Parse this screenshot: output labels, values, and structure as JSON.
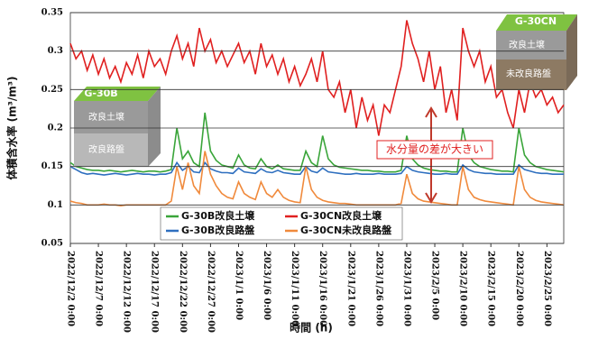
{
  "chart_data": {
    "type": "line",
    "y_label": "体積含水率 (m³/m³)",
    "x_label": "時間 (h)",
    "annotation": "水分量の差が大きい",
    "insets": [
      {
        "title": "G-30B",
        "layers": [
          "改良土壌",
          "改良路盤"
        ]
      },
      {
        "title": "G-30CN",
        "layers": [
          "改良土壌",
          "未改良路盤"
        ]
      }
    ],
    "grid": true,
    "legend": "lower left",
    "ylim": [
      0.05,
      0.35
    ],
    "yticks": [
      0.05,
      0.1,
      0.15,
      0.2,
      0.25,
      0.3,
      0.35
    ],
    "xlim": [
      "2022/12/2",
      "2023/2/28"
    ],
    "xticks": [
      {
        "value": "2022/12/2",
        "label": "2022/12/2 0:00"
      },
      {
        "value": "2022/12/7",
        "label": "2022/12/7 0:00"
      },
      {
        "value": "2022/12/12",
        "label": "2022/12/12 0:00"
      },
      {
        "value": "2022/12/17",
        "label": "2022/12/17 0:00"
      },
      {
        "value": "2022/12/22",
        "label": "2022/12/22 0:00"
      },
      {
        "value": "2022/12/27",
        "label": "2022/12/27 0:00"
      },
      {
        "value": "2023/1/1",
        "label": "2023/1/1 0:00"
      },
      {
        "value": "2023/1/6",
        "label": "2023/1/6 0:00"
      },
      {
        "value": "2023/1/11",
        "label": "2023/1/11 0:00"
      },
      {
        "value": "2023/1/16",
        "label": "2023/1/16 0:00"
      },
      {
        "value": "2023/1/21",
        "label": "2023/1/21 0:00"
      },
      {
        "value": "2023/1/26",
        "label": "2023/1/26 0:00"
      },
      {
        "value": "2023/1/31",
        "label": "2023/1/31 0:00"
      },
      {
        "value": "2023/2/5",
        "label": "2023/2/5 0:00"
      },
      {
        "value": "2023/2/10",
        "label": "2023/2/10 0:00"
      },
      {
        "value": "2023/2/15",
        "label": "2023/2/15 0:00"
      },
      {
        "value": "2023/2/20",
        "label": "2023/2/20 0:00"
      },
      {
        "value": "2023/2/25",
        "label": "2023/2/25 0:00"
      }
    ],
    "x": [
      "2022/12/2",
      "2022/12/3",
      "2022/12/4",
      "2022/12/5",
      "2022/12/6",
      "2022/12/7",
      "2022/12/8",
      "2022/12/9",
      "2022/12/10",
      "2022/12/11",
      "2022/12/12",
      "2022/12/13",
      "2022/12/14",
      "2022/12/15",
      "2022/12/16",
      "2022/12/17",
      "2022/12/18",
      "2022/12/19",
      "2022/12/20",
      "2022/12/21",
      "2022/12/22",
      "2022/12/23",
      "2022/12/24",
      "2022/12/25",
      "2022/12/26",
      "2022/12/27",
      "2022/12/28",
      "2022/12/29",
      "2022/12/30",
      "2022/12/31",
      "2023/1/1",
      "2023/1/2",
      "2023/1/3",
      "2023/1/4",
      "2023/1/5",
      "2023/1/6",
      "2023/1/7",
      "2023/1/8",
      "2023/1/9",
      "2023/1/10",
      "2023/1/11",
      "2023/1/12",
      "2023/1/13",
      "2023/1/14",
      "2023/1/15",
      "2023/1/16",
      "2023/1/17",
      "2023/1/18",
      "2023/1/19",
      "2023/1/20",
      "2023/1/21",
      "2023/1/22",
      "2023/1/23",
      "2023/1/24",
      "2023/1/25",
      "2023/1/26",
      "2023/1/27",
      "2023/1/28",
      "2023/1/29",
      "2023/1/30",
      "2023/1/31",
      "2023/2/1",
      "2023/2/2",
      "2023/2/3",
      "2023/2/4",
      "2023/2/5",
      "2023/2/6",
      "2023/2/7",
      "2023/2/8",
      "2023/2/9",
      "2023/2/10",
      "2023/2/11",
      "2023/2/12",
      "2023/2/13",
      "2023/2/14",
      "2023/2/15",
      "2023/2/16",
      "2023/2/17",
      "2023/2/18",
      "2023/2/19",
      "2023/2/20",
      "2023/2/21",
      "2023/2/22",
      "2023/2/23",
      "2023/2/24",
      "2023/2/25",
      "2023/2/26",
      "2023/2/27",
      "2023/2/28"
    ],
    "series": [
      {
        "name": "G-30B改良土壌",
        "color": "#3aa53a",
        "values": [
          0.155,
          0.15,
          0.148,
          0.146,
          0.145,
          0.145,
          0.144,
          0.145,
          0.144,
          0.143,
          0.144,
          0.145,
          0.144,
          0.143,
          0.144,
          0.144,
          0.143,
          0.144,
          0.146,
          0.2,
          0.16,
          0.17,
          0.155,
          0.15,
          0.22,
          0.17,
          0.158,
          0.152,
          0.15,
          0.148,
          0.165,
          0.152,
          0.148,
          0.147,
          0.16,
          0.15,
          0.147,
          0.152,
          0.147,
          0.146,
          0.145,
          0.145,
          0.17,
          0.155,
          0.15,
          0.19,
          0.16,
          0.152,
          0.149,
          0.148,
          0.147,
          0.146,
          0.145,
          0.145,
          0.144,
          0.144,
          0.143,
          0.143,
          0.143,
          0.145,
          0.19,
          0.16,
          0.152,
          0.148,
          0.146,
          0.145,
          0.144,
          0.144,
          0.143,
          0.143,
          0.2,
          0.165,
          0.155,
          0.15,
          0.148,
          0.146,
          0.145,
          0.144,
          0.144,
          0.143,
          0.2,
          0.165,
          0.155,
          0.15,
          0.148,
          0.146,
          0.145,
          0.144,
          0.143
        ]
      },
      {
        "name": "G-30CN改良土壌",
        "color": "#e02020",
        "values": [
          0.31,
          0.29,
          0.3,
          0.275,
          0.295,
          0.27,
          0.29,
          0.265,
          0.28,
          0.26,
          0.285,
          0.27,
          0.295,
          0.265,
          0.3,
          0.28,
          0.29,
          0.27,
          0.3,
          0.32,
          0.29,
          0.31,
          0.28,
          0.33,
          0.3,
          0.315,
          0.285,
          0.3,
          0.28,
          0.295,
          0.31,
          0.285,
          0.3,
          0.27,
          0.31,
          0.28,
          0.295,
          0.27,
          0.29,
          0.26,
          0.28,
          0.255,
          0.27,
          0.29,
          0.26,
          0.3,
          0.25,
          0.24,
          0.26,
          0.22,
          0.25,
          0.2,
          0.24,
          0.21,
          0.23,
          0.19,
          0.23,
          0.22,
          0.25,
          0.28,
          0.34,
          0.31,
          0.29,
          0.26,
          0.3,
          0.25,
          0.28,
          0.22,
          0.25,
          0.21,
          0.33,
          0.3,
          0.28,
          0.3,
          0.26,
          0.28,
          0.24,
          0.25,
          0.22,
          0.2,
          0.25,
          0.22,
          0.26,
          0.24,
          0.25,
          0.23,
          0.24,
          0.22,
          0.23
        ]
      },
      {
        "name": "G-30B改良路盤",
        "color": "#2e6fbf",
        "values": [
          0.15,
          0.146,
          0.142,
          0.14,
          0.141,
          0.14,
          0.139,
          0.14,
          0.141,
          0.14,
          0.139,
          0.14,
          0.141,
          0.14,
          0.14,
          0.139,
          0.14,
          0.14,
          0.142,
          0.155,
          0.145,
          0.15,
          0.143,
          0.142,
          0.155,
          0.147,
          0.144,
          0.142,
          0.142,
          0.141,
          0.148,
          0.143,
          0.142,
          0.141,
          0.147,
          0.143,
          0.142,
          0.145,
          0.142,
          0.141,
          0.14,
          0.14,
          0.15,
          0.144,
          0.142,
          0.148,
          0.143,
          0.142,
          0.141,
          0.14,
          0.14,
          0.141,
          0.14,
          0.14,
          0.14,
          0.141,
          0.14,
          0.14,
          0.14,
          0.141,
          0.15,
          0.145,
          0.143,
          0.142,
          0.141,
          0.14,
          0.14,
          0.141,
          0.14,
          0.14,
          0.152,
          0.146,
          0.143,
          0.142,
          0.141,
          0.141,
          0.14,
          0.14,
          0.14,
          0.14,
          0.152,
          0.146,
          0.144,
          0.142,
          0.141,
          0.141,
          0.14,
          0.14,
          0.14
        ]
      },
      {
        "name": "G-30CN未改良路盤",
        "color": "#f08a3c",
        "values": [
          0.105,
          0.103,
          0.102,
          0.1,
          0.1,
          0.1,
          0.101,
          0.1,
          0.1,
          0.099,
          0.1,
          0.1,
          0.1,
          0.1,
          0.1,
          0.1,
          0.1,
          0.1,
          0.105,
          0.15,
          0.12,
          0.155,
          0.125,
          0.115,
          0.17,
          0.14,
          0.125,
          0.115,
          0.11,
          0.108,
          0.13,
          0.115,
          0.11,
          0.107,
          0.13,
          0.115,
          0.11,
          0.12,
          0.11,
          0.106,
          0.104,
          0.103,
          0.15,
          0.12,
          0.11,
          0.106,
          0.104,
          0.103,
          0.102,
          0.102,
          0.101,
          0.1,
          0.1,
          0.1,
          0.1,
          0.1,
          0.1,
          0.1,
          0.1,
          0.102,
          0.14,
          0.115,
          0.108,
          0.105,
          0.104,
          0.103,
          0.102,
          0.101,
          0.1,
          0.1,
          0.15,
          0.12,
          0.11,
          0.107,
          0.105,
          0.104,
          0.103,
          0.102,
          0.101,
          0.1,
          0.15,
          0.12,
          0.11,
          0.106,
          0.104,
          0.103,
          0.102,
          0.101,
          0.1
        ]
      }
    ]
  }
}
